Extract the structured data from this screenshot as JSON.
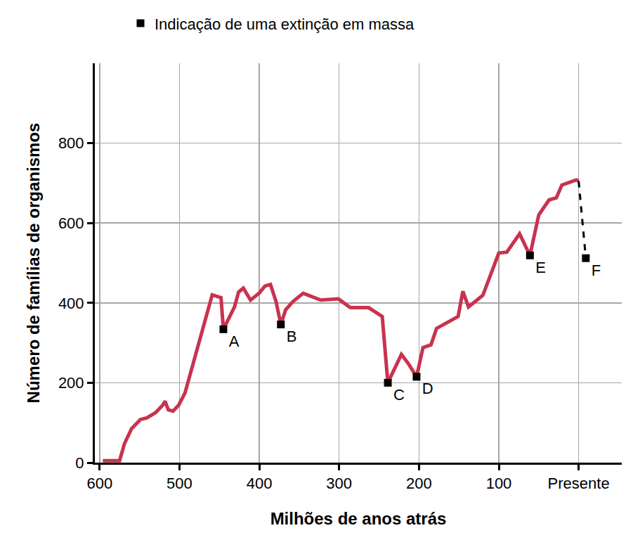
{
  "chart_data": {
    "type": "line",
    "x_label": "Milhões de anos atrás",
    "y_label": "Número de famílias de organismos",
    "xlim": [
      606,
      -54
    ],
    "xticks": [
      600,
      500,
      400,
      300,
      200,
      100,
      {
        "value": 0,
        "label": "Presente"
      }
    ],
    "ylim": [
      0,
      1000
    ],
    "yticks": [
      0,
      200,
      400,
      600,
      800
    ],
    "grid": true,
    "legend": "top",
    "series": [
      {
        "type": "line",
        "color": "#c8334f",
        "line_style": "solid",
        "x": [
          596,
          575,
          569,
          560,
          549,
          541,
          530,
          521,
          518,
          514,
          508,
          501,
          493,
          459,
          448,
          445,
          431,
          426,
          420,
          411,
          400,
          393,
          386,
          379,
          373,
          367,
          358,
          345,
          323,
          301,
          286,
          263,
          246,
          239,
          222,
          213,
          203,
          195,
          185,
          178,
          151,
          145,
          138,
          120,
          100,
          90,
          74,
          61,
          50,
          37,
          28,
          21,
          3,
          0
        ],
        "values": [
          5,
          5,
          47,
          85,
          108,
          112,
          125,
          144,
          154,
          132,
          129,
          144,
          175,
          420,
          413,
          334,
          390,
          427,
          437,
          407,
          425,
          442,
          446,
          403,
          346,
          383,
          403,
          424,
          407,
          410,
          388,
          388,
          366,
          200,
          271,
          247,
          215,
          288,
          295,
          336,
          366,
          429,
          390,
          419,
          525,
          527,
          573,
          519,
          620,
          658,
          663,
          695,
          708,
          705
        ]
      },
      {
        "type": "line",
        "color": "#000000",
        "line_style": "dash",
        "x": [
          0,
          -9
        ],
        "values": [
          705,
          512
        ]
      },
      {
        "type": "scatter",
        "name": "Indicação de uma extinção em massa",
        "color": "#000000",
        "marker": "square",
        "x": [
          445,
          373,
          239,
          203,
          61,
          -9
        ],
        "values": [
          334,
          346,
          200,
          215,
          519,
          512
        ],
        "labels": [
          "A",
          "B",
          "C",
          "D",
          "E",
          "F"
        ]
      }
    ]
  }
}
